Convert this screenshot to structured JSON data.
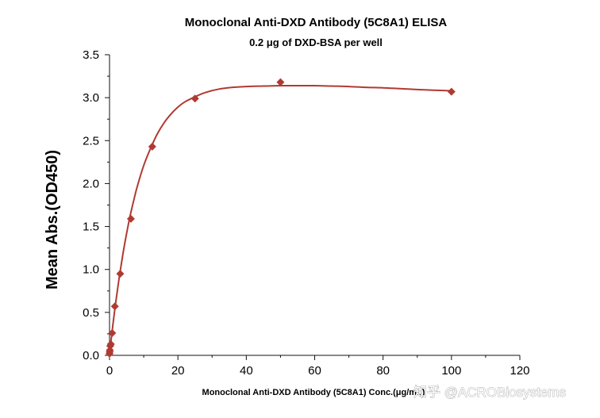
{
  "chart_data": {
    "type": "scatter",
    "title": "Monoclonal Anti-DXD Antibody (5C8A1) ELISA",
    "subtitle": "0.2 μg of DXD-BSA per well",
    "xlabel": "Monoclonal Anti-DXD Antibody (5C8A1) Conc.(μg/mL)",
    "ylabel": "Mean Abs.(OD450)",
    "xlim": [
      0,
      120
    ],
    "ylim": [
      0,
      3.5
    ],
    "xticks": [
      0,
      20,
      40,
      60,
      80,
      100,
      120
    ],
    "yticks": [
      0.0,
      0.5,
      1.0,
      1.5,
      2.0,
      2.5,
      3.0,
      3.5
    ],
    "xtick_labels": [
      "0",
      "20",
      "40",
      "60",
      "80",
      "100",
      "120"
    ],
    "ytick_labels": [
      "0.0",
      "0.5",
      "1.0",
      "1.5",
      "2.0",
      "2.5",
      "3.0",
      "3.5"
    ],
    "grid": false,
    "color": "#b03a32",
    "marker": "diamond",
    "series": [
      {
        "x": [
          0.0,
          0.05,
          0.1,
          0.2,
          0.39,
          0.78,
          1.56,
          3.13,
          6.25,
          12.5,
          25,
          50,
          100
        ],
        "y": [
          0.02,
          0.04,
          0.06,
          0.11,
          0.13,
          0.26,
          0.57,
          0.95,
          1.59,
          2.43,
          2.99,
          3.18,
          3.07
        ]
      }
    ],
    "fit_curve": {
      "x": [
        0,
        0.5,
        1,
        1.5,
        2,
        3,
        4,
        5,
        6,
        7,
        8,
        10,
        12,
        14,
        16,
        18,
        20,
        22,
        25,
        28,
        32,
        36,
        40,
        45,
        50,
        55,
        60,
        65,
        70,
        75,
        80,
        85,
        90,
        95,
        100
      ],
      "y": [
        0.02,
        0.19,
        0.36,
        0.52,
        0.67,
        0.95,
        1.2,
        1.42,
        1.62,
        1.79,
        1.95,
        2.21,
        2.41,
        2.58,
        2.71,
        2.81,
        2.89,
        2.95,
        3.01,
        3.06,
        3.1,
        3.12,
        3.13,
        3.135,
        3.14,
        3.14,
        3.14,
        3.135,
        3.13,
        3.12,
        3.115,
        3.105,
        3.095,
        3.087,
        3.08
      ]
    }
  },
  "watermark": "知乎 @ACROBiosystems"
}
